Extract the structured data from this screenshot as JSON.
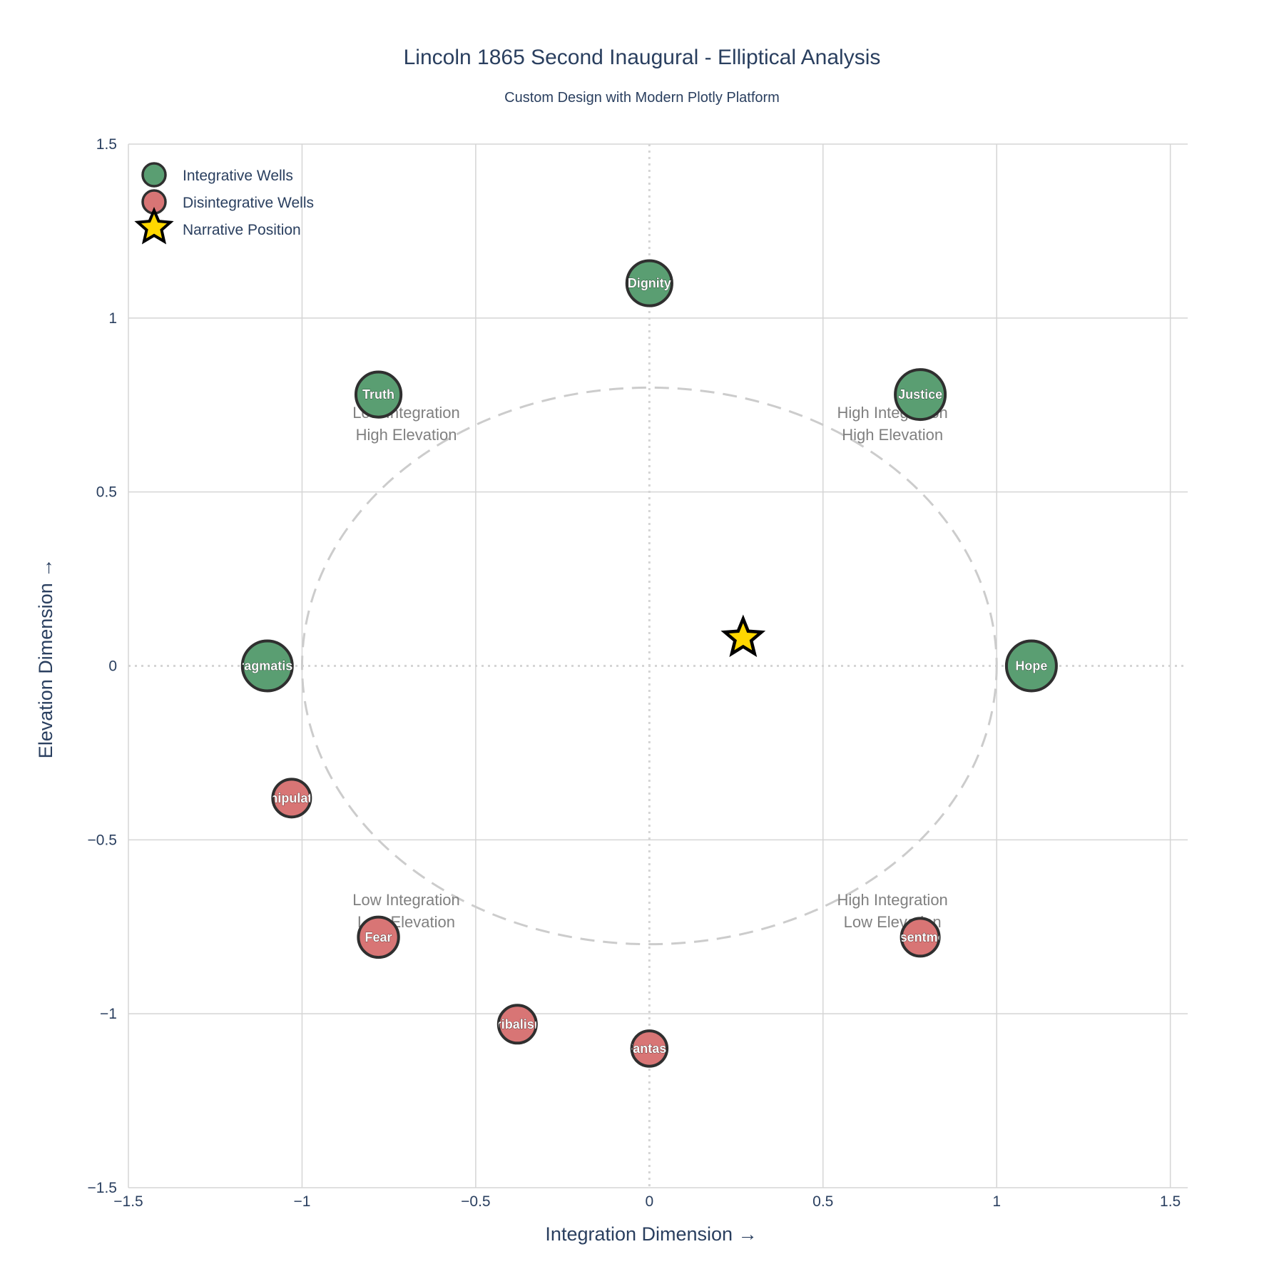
{
  "colors": {
    "integrative": "#5a9e72",
    "disintegrative": "#d87575",
    "marker_outline": "#2f2f2f",
    "star_fill": "#ffd700",
    "grid": "#d5d5d5",
    "ellipse": "#cccccc",
    "text": "#2a3f5f",
    "quadrant_text": "#808080"
  },
  "chart_data": {
    "type": "scatter",
    "title": "Lincoln 1865 Second Inaugural - Elliptical Analysis",
    "subtitle": "Custom Design with Modern Plotly Platform",
    "xlabel": "Integration Dimension →",
    "ylabel": "Elevation Dimension →",
    "xlim": [
      -1.5,
      1.55
    ],
    "ylim": [
      -1.5,
      1.5
    ],
    "x_ticks": [
      -1.5,
      -1,
      -0.5,
      0,
      0.5,
      1,
      1.5
    ],
    "y_ticks": [
      -1.5,
      -1,
      -0.5,
      0,
      0.5,
      1,
      1.5
    ],
    "x_tick_labels": [
      "−1.5",
      "−1",
      "−0.5",
      "0",
      "0.5",
      "1",
      "1.5"
    ],
    "y_tick_labels": [
      "−1.5",
      "−1",
      "−0.5",
      "0",
      "0.5",
      "1",
      "1.5"
    ],
    "grid": true,
    "legend_position": "top-left",
    "ellipse": {
      "rx": 1.0,
      "ry": 0.8,
      "style": "dashed"
    },
    "legend": [
      "Integrative Wells",
      "Disintegrative Wells",
      "Narrative Position"
    ],
    "series": [
      {
        "name": "Integrative Wells",
        "points": [
          {
            "label": "Dignity",
            "x": 0.0,
            "y": 1.1,
            "weight": 0.8
          },
          {
            "label": "Truth",
            "x": -0.78,
            "y": 0.78,
            "weight": 0.8
          },
          {
            "label": "Justice",
            "x": 0.78,
            "y": 0.78,
            "weight": 1.0
          },
          {
            "label": "Hope",
            "x": 1.1,
            "y": 0.0,
            "weight": 1.0
          },
          {
            "label": "Pragmatism",
            "x": -1.1,
            "y": 0.0,
            "weight": 1.0
          }
        ]
      },
      {
        "name": "Disintegrative Wells",
        "points": [
          {
            "label": "Manipulation",
            "x": -1.03,
            "y": -0.38,
            "weight": 0.5
          },
          {
            "label": "Fear",
            "x": -0.78,
            "y": -0.78,
            "weight": 0.6
          },
          {
            "label": "Tribalism",
            "x": -0.38,
            "y": -1.03,
            "weight": 0.5
          },
          {
            "label": "Fantasy",
            "x": 0.0,
            "y": -1.1,
            "weight": 0.4
          },
          {
            "label": "Resentment",
            "x": 0.78,
            "y": -0.78,
            "weight": 0.5
          }
        ]
      },
      {
        "name": "Narrative Position",
        "points": [
          {
            "x": 0.27,
            "y": 0.08
          }
        ]
      }
    ],
    "annotations": [
      {
        "lines": [
          "High Integration",
          "High Elevation"
        ],
        "x": 0.7,
        "y": 0.7
      },
      {
        "lines": [
          "Low Integration",
          "High Elevation"
        ],
        "x": -0.7,
        "y": 0.7
      },
      {
        "lines": [
          "Low Integration",
          "Low Elevation"
        ],
        "x": -0.7,
        "y": -0.7
      },
      {
        "lines": [
          "High Integration",
          "Low Elevation"
        ],
        "x": 0.7,
        "y": -0.7
      }
    ]
  }
}
